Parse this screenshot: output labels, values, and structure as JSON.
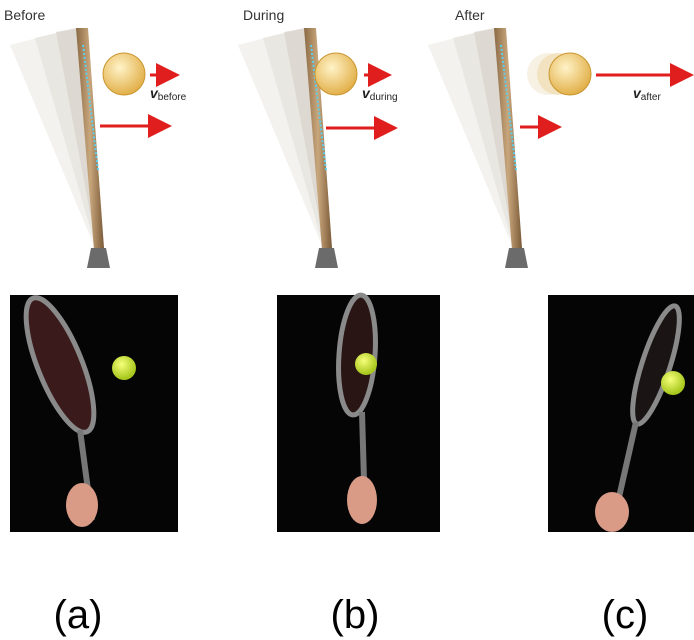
{
  "panels": [
    {
      "label": "Before",
      "velocity": {
        "symbol": "v",
        "subscript": "before"
      },
      "caption": "(a)"
    },
    {
      "label": "During",
      "velocity": {
        "symbol": "v",
        "subscript": "during"
      },
      "caption": "(b)"
    },
    {
      "label": "After",
      "velocity": {
        "symbol": "v",
        "subscript": "after"
      },
      "caption": "(c)"
    }
  ]
}
